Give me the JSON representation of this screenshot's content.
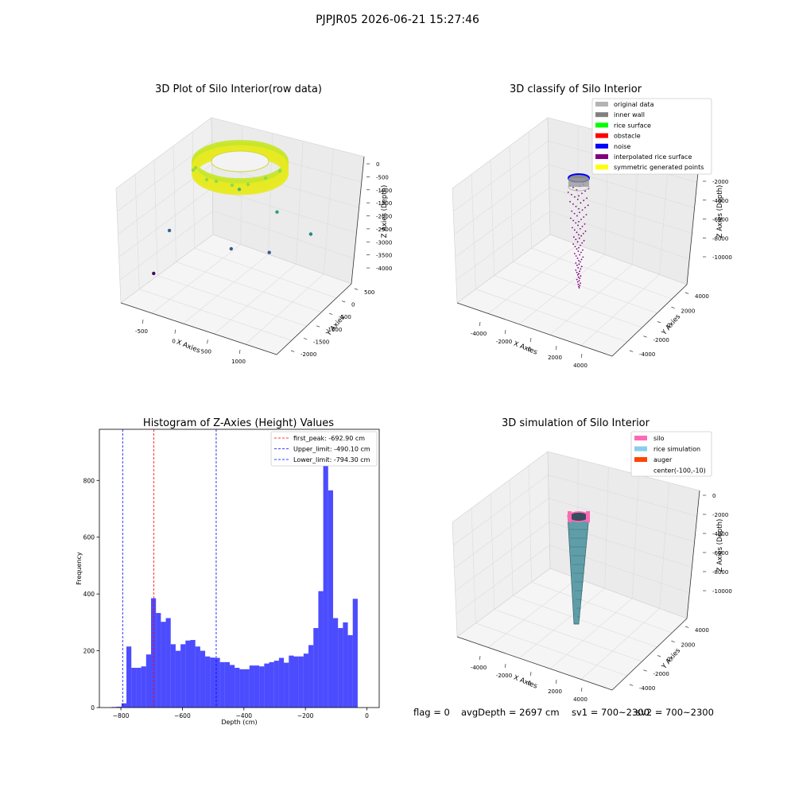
{
  "suptitle": "PJPJR05 2026-06-21 15:27:46",
  "status": {
    "flag": "flag = 0",
    "avg_depth": "avgDepth = 2697 cm",
    "sv1": "sv1 = 700~2300",
    "sv2": "sv2 = 700~2300"
  },
  "chart_data": [
    {
      "type": "scatter",
      "title": "3D Plot of Silo Interior(row data)",
      "xlabel": "X Axies",
      "ylabel": "Y Axies",
      "zlabel": "Z Axies (Depth)",
      "xticks": [
        "-500",
        "0",
        "500",
        "1000"
      ],
      "yticks": [
        "500",
        "0",
        "-500",
        "-1000",
        "-1500",
        "-2000"
      ],
      "zticks": [
        "0",
        "-500",
        "-1000",
        "-1500",
        "-2000",
        "-2500",
        "-3000",
        "-3500",
        "-4000"
      ],
      "xlim": [
        -800,
        1300
      ],
      "ylim": [
        -2200,
        700
      ],
      "zlim": [
        -4200,
        100
      ],
      "ring": {
        "cx": 0,
        "cy": 0,
        "r_outer": 600,
        "r_inner": 300,
        "z_top": 0,
        "z_bottom": -300
      },
      "outliers": [
        {
          "x": 150,
          "y": 250,
          "z": -1350
        },
        {
          "x": 550,
          "y": -100,
          "z": -1800
        },
        {
          "x": 900,
          "y": -300,
          "z": -2300
        },
        {
          "x": -550,
          "y": 300,
          "z": -2800
        },
        {
          "x": 100,
          "y": -200,
          "z": -3000
        },
        {
          "x": 500,
          "y": -500,
          "z": -2900
        },
        {
          "x": -700,
          "y": 200,
          "z": -4100
        }
      ],
      "colormap": "viridis"
    },
    {
      "type": "scatter",
      "title": "3D classify of Silo Interior",
      "xlabel": "X Axies",
      "ylabel": "Y Axies",
      "zlabel": "Z Axies (Depth)",
      "xticks": [
        "-4000",
        "-2000",
        "0",
        "2000",
        "4000"
      ],
      "yticks": [
        "4000",
        "2000",
        "0",
        "-2000",
        "-4000"
      ],
      "zticks": [
        "-2000",
        "-4000",
        "-6000",
        "-8000",
        "-10000"
      ],
      "legend": [
        {
          "label": "original data",
          "color": "#b3b3b3"
        },
        {
          "label": "inner wall",
          "color": "#808080"
        },
        {
          "label": "rice surface",
          "color": "#00ff00"
        },
        {
          "label": "obstacle",
          "color": "#ff0000"
        },
        {
          "label": "noise",
          "color": "#0000ff"
        },
        {
          "label": "interpolated rice surface",
          "color": "#800080"
        },
        {
          "label": "symmetric generated points",
          "color": "#ffff00"
        }
      ],
      "legend_loc": "upper right"
    },
    {
      "type": "bar",
      "title": "Histogram of Z-Axies (Height) Values",
      "xlabel": "Depth (cm)",
      "ylabel": "Frequency",
      "xlim": [
        -870,
        40
      ],
      "ylim": [
        0,
        980
      ],
      "xticks": [
        -800,
        -600,
        -400,
        -200,
        0
      ],
      "yticks": [
        0,
        200,
        400,
        600,
        800
      ],
      "bin_start": -830,
      "bin_width": 16,
      "color": "#0000ff",
      "values": [
        2,
        3,
        15,
        215,
        140,
        140,
        145,
        187,
        385,
        333,
        302,
        315,
        223,
        200,
        223,
        236,
        238,
        215,
        200,
        180,
        176,
        175,
        160,
        160,
        150,
        140,
        135,
        135,
        148,
        148,
        145,
        155,
        160,
        165,
        175,
        158,
        183,
        180,
        180,
        190,
        220,
        280,
        410,
        940,
        765,
        315,
        280,
        300,
        255,
        383
      ],
      "vlines": [
        {
          "label": "first_peak: -692.90 cm",
          "x": -692.9,
          "color": "#ff0000"
        },
        {
          "label": "Upper_limit: -490.10 cm",
          "x": -490.1,
          "color": "#0000ff"
        },
        {
          "label": "Lower_limit: -794.30 cm",
          "x": -794.3,
          "color": "#0000ff"
        }
      ],
      "legend_loc": "upper right"
    },
    {
      "type": "scatter",
      "title": "3D simulation of Silo Interior",
      "xlabel": "X Axies",
      "ylabel": "Y Axies",
      "zlabel": "Z Axies (Depth)",
      "xticks": [
        "-4000",
        "-2000",
        "0",
        "2000",
        "4000"
      ],
      "yticks": [
        "4000",
        "2000",
        "0",
        "-2000",
        "-4000"
      ],
      "zticks": [
        "0",
        "-2000",
        "-4000",
        "-6000",
        "-8000",
        "-10000"
      ],
      "legend": [
        {
          "label": "silo",
          "color": "#ff69b4"
        },
        {
          "label": "rice simulation",
          "color": "#87ceeb"
        },
        {
          "label": "auger",
          "color": "#ff4500"
        },
        {
          "label": "center(-100,-10)",
          "color": ""
        }
      ],
      "legend_loc": "upper right"
    }
  ]
}
